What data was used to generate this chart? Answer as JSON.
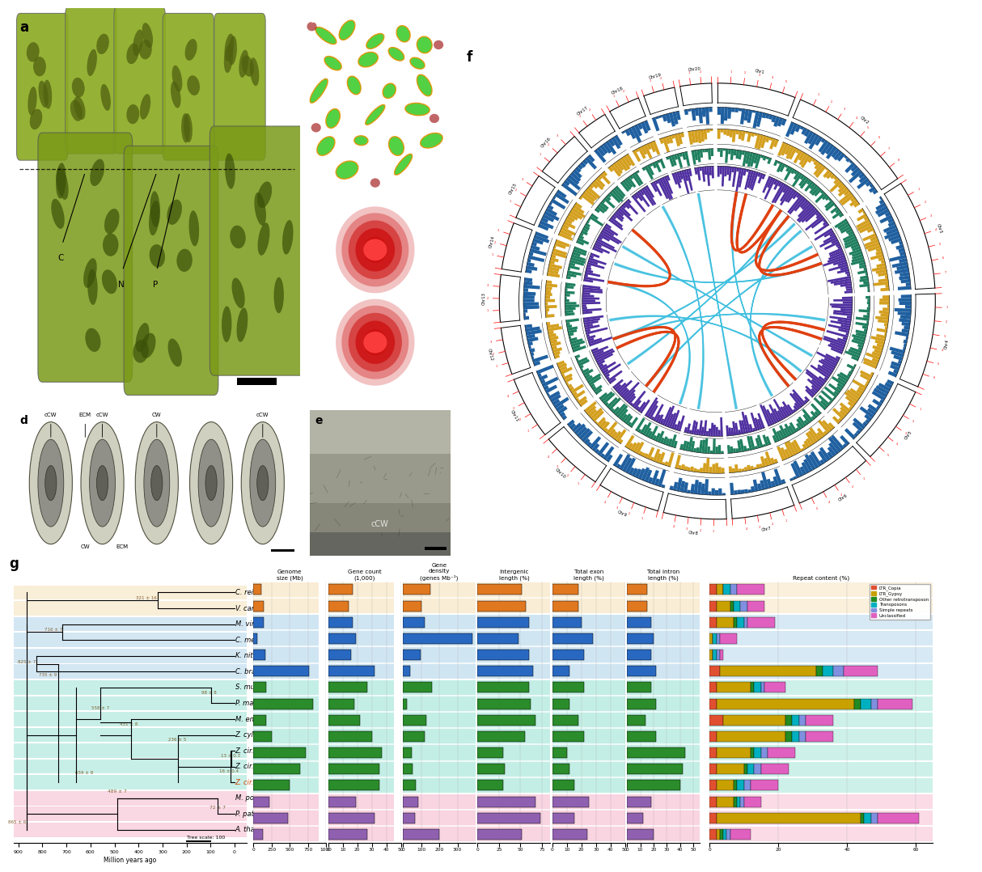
{
  "species": [
    "A. thaliana",
    "P. patens",
    "M. polymorpha",
    "Z. cir. SAG 698-1b",
    "Z. cir. UTEX 1560",
    "Z. cir. UTEX 1559",
    "Z. cyl. SAG 698-1a_XF",
    "M. endlicherianum",
    "P. margaritaceum",
    "S. muscicola",
    "C. braunii",
    "K. nitens",
    "C. melkonianii",
    "M. viride",
    "V. carteri",
    "C. reinhardtii"
  ],
  "genome_size": [
    135,
    480,
    225,
    500,
    640,
    720,
    250,
    170,
    820,
    170,
    760,
    165,
    50,
    140,
    138,
    112
  ],
  "gene_count": [
    27,
    32,
    19,
    35,
    35,
    37,
    30,
    22,
    18,
    27,
    32,
    16,
    19,
    17,
    14,
    17
  ],
  "gene_density": [
    200,
    67,
    84,
    70,
    55,
    51,
    120,
    129,
    22,
    158,
    42,
    97,
    380,
    121,
    101,
    152
  ],
  "intergenic_length": [
    52,
    73,
    68,
    30,
    32,
    30,
    55,
    68,
    62,
    60,
    65,
    60,
    48,
    60,
    56,
    52
  ],
  "total_exon_length": [
    24,
    15,
    25,
    15,
    12,
    10,
    22,
    18,
    12,
    22,
    12,
    22,
    28,
    20,
    18,
    18
  ],
  "total_intron_length": [
    20,
    12,
    18,
    40,
    42,
    44,
    22,
    14,
    22,
    18,
    22,
    18,
    20,
    18,
    15,
    15
  ],
  "repeat_ltr_copia": [
    2,
    2,
    2,
    2,
    2,
    2,
    2,
    4,
    2,
    2,
    3,
    0,
    0,
    2,
    2,
    2
  ],
  "repeat_ltr_gypsy": [
    1,
    42,
    5,
    5,
    8,
    10,
    20,
    18,
    40,
    10,
    28,
    1,
    1,
    5,
    4,
    2
  ],
  "repeat_other_retro": [
    1,
    1,
    1,
    1,
    1,
    1,
    2,
    2,
    2,
    1,
    2,
    0,
    0,
    1,
    1,
    0
  ],
  "repeat_transposons": [
    1,
    2,
    1,
    2,
    2,
    2,
    2,
    2,
    3,
    2,
    3,
    1,
    1,
    2,
    2,
    2
  ],
  "repeat_simple": [
    1,
    2,
    1,
    2,
    2,
    2,
    2,
    2,
    2,
    1,
    3,
    1,
    1,
    1,
    2,
    2
  ],
  "repeat_unclassified": [
    6,
    12,
    5,
    8,
    8,
    8,
    8,
    8,
    10,
    6,
    10,
    1,
    5,
    8,
    5,
    8
  ],
  "bg_colors": [
    "#f5b0c8",
    "#f5b0c8",
    "#f5b0c8",
    "#90e0d0",
    "#90e0d0",
    "#90e0d0",
    "#90e0d0",
    "#90e0d0",
    "#90e0d0",
    "#90e0d0",
    "#a8d0e8",
    "#a8d0e8",
    "#a8d0e8",
    "#a8d0e8",
    "#f5deb3",
    "#f5deb3"
  ],
  "bar_colors_by_group": {
    "land": "#9060b0",
    "zyg": "#2a8c2a",
    "char": "#2868c0",
    "chloro": "#e07820"
  },
  "group_indices": {
    "land": [
      0,
      1,
      2
    ],
    "zyg": [
      3,
      4,
      5,
      6,
      7,
      8,
      9
    ],
    "char": [
      10,
      11,
      12,
      13
    ],
    "chloro": [
      14,
      15
    ]
  },
  "rep_colors": {
    "LTR_Copia": "#e05030",
    "LTR_Gypsy": "#c8a000",
    "Other retrotransposon": "#228b22",
    "Transposons": "#00b0c0",
    "Simple repeats": "#8090e0",
    "Unclassified": "#e060c0"
  },
  "tree_nodes": {
    "489": {
      "x": -489,
      "y_range": [
        0,
        2
      ]
    },
    "72": {
      "x": -72,
      "y_range": [
        0,
        1
      ]
    },
    "610": {
      "x": -610,
      "y_range": [
        0,
        9
      ]
    },
    "13": {
      "x": -13,
      "y_range": [
        3,
        4
      ]
    },
    "16": {
      "x": -16,
      "y_range": [
        3,
        5
      ]
    },
    "236": {
      "x": -236,
      "y_range": [
        3,
        6
      ]
    },
    "431": {
      "x": -431,
      "y_range": [
        3,
        7
      ]
    },
    "659": {
      "x": -659,
      "y_range": [
        3,
        9
      ]
    },
    "98": {
      "x": -98,
      "y_range": [
        7,
        8
      ]
    },
    "558": {
      "x": -558,
      "y_range": [
        7,
        9
      ]
    },
    "735": {
      "x": -735,
      "y_range": [
        3,
        10
      ]
    },
    "825": {
      "x": -825,
      "y_range": [
        3,
        13
      ]
    },
    "716": {
      "x": -716,
      "y_range": [
        11,
        13
      ]
    },
    "865": {
      "x": -865,
      "y_range": [
        0,
        13
      ]
    },
    "321": {
      "x": -321,
      "y_range": [
        14,
        15
      ]
    }
  }
}
